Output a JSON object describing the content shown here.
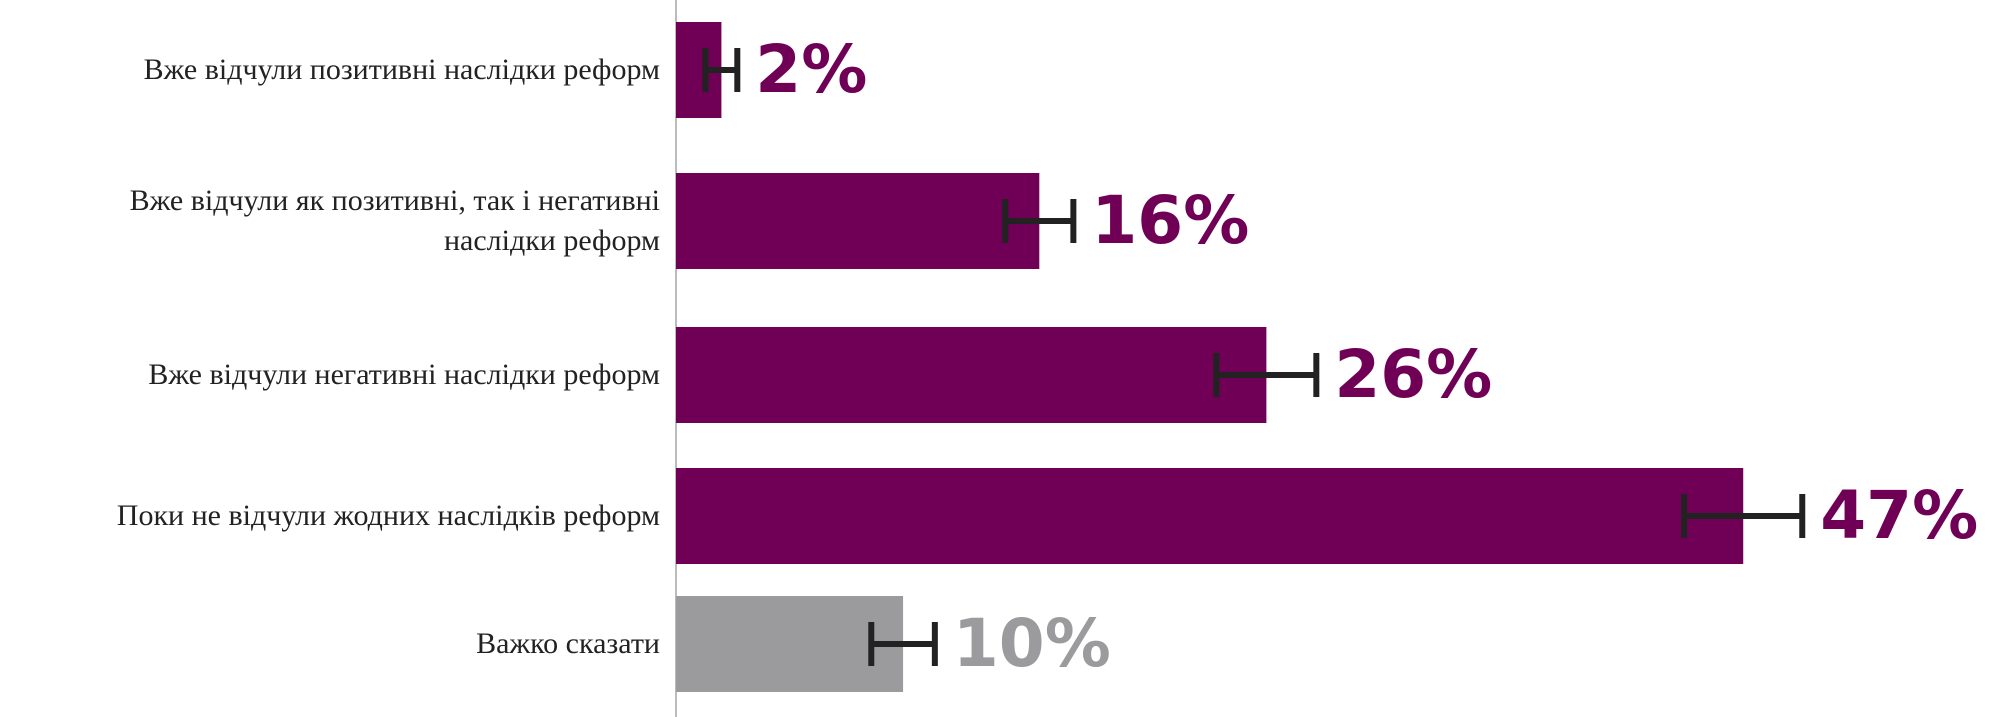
{
  "chart_data": {
    "type": "hbar",
    "categories": [
      "Вже відчули позитивні наслідки реформ",
      "Вже відчули як позитивні, так і негативні наслідки реформ",
      "Вже відчули негативні наслідки реформ",
      "Поки не відчули жодних наслідків реформ",
      "Важко сказати"
    ],
    "values": [
      2,
      16,
      26,
      47,
      10
    ],
    "errors": [
      0.7,
      1.5,
      2.2,
      2.6,
      1.4
    ],
    "value_labels": [
      "2%",
      "16%",
      "26%",
      "47%",
      "10%"
    ],
    "colors": [
      "#700055",
      "#700055",
      "#700055",
      "#700055",
      "#9b9b9e"
    ],
    "xlim": [
      0,
      58
    ]
  }
}
